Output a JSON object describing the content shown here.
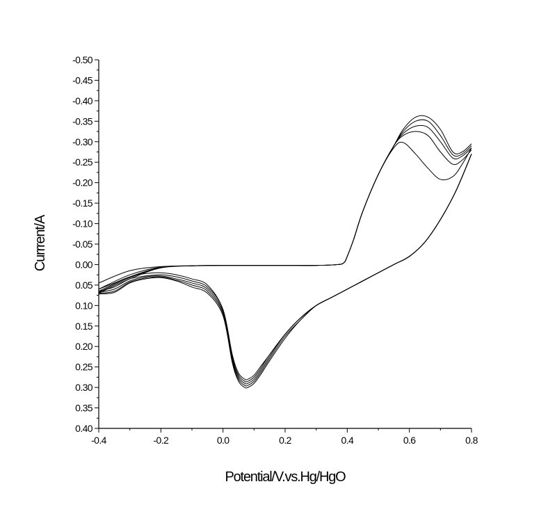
{
  "chart_data": {
    "type": "line",
    "title": "",
    "xlabel": "Potential/V.vs.Hg/HgO",
    "ylabel": "Currrent/A",
    "xlim": [
      -0.4,
      0.8
    ],
    "ylim": [
      0.4,
      -0.5
    ],
    "y_axis_inverted": true,
    "grid": false,
    "legend": "none",
    "x_ticks": [
      -0.4,
      -0.2,
      0.0,
      0.2,
      0.4,
      0.6,
      0.8
    ],
    "x_tick_labels": [
      "-0.4",
      "-0.2",
      "0.0",
      "0.2",
      "0.4",
      "0.6",
      "0.8"
    ],
    "y_ticks": [
      -0.5,
      -0.45,
      -0.4,
      -0.35,
      -0.3,
      -0.25,
      -0.2,
      -0.15,
      -0.1,
      -0.05,
      0.0,
      0.05,
      0.1,
      0.15,
      0.2,
      0.25,
      0.3,
      0.35,
      0.4
    ],
    "y_tick_labels": [
      "-0.50",
      "-0.45",
      "-0.40",
      "-0.35",
      "-0.30",
      "-0.25",
      "-0.20",
      "-0.15",
      "-0.10",
      "-0.05",
      "0.00",
      "0.05",
      "0.10",
      "0.15",
      "0.20",
      "0.25",
      "0.30",
      "0.35",
      "0.40"
    ],
    "line_color": "#000000",
    "series": [
      {
        "anodic": {
          "x": [
            -0.4,
            -0.3,
            -0.2,
            -0.1,
            0.0,
            0.1,
            0.2,
            0.3,
            0.37,
            0.39,
            0.4,
            0.42,
            0.45,
            0.5,
            0.55,
            0.58,
            0.62,
            0.66,
            0.7,
            0.74,
            0.77,
            0.8
          ],
          "y": [
            0.045,
            0.015,
            0.005,
            0.003,
            0.002,
            0.002,
            0.002,
            0.002,
            0.0,
            -0.005,
            -0.02,
            -0.06,
            -0.13,
            -0.22,
            -0.285,
            -0.298,
            -0.27,
            -0.235,
            -0.208,
            -0.215,
            -0.245,
            -0.285
          ]
        },
        "cathodic": {
          "x": [
            0.8,
            0.75,
            0.7,
            0.65,
            0.6,
            0.55,
            0.5,
            0.45,
            0.4,
            0.35,
            0.3,
            0.25,
            0.2,
            0.15,
            0.12,
            0.1,
            0.08,
            0.07,
            0.05,
            0.03,
            0.0,
            -0.05,
            -0.1,
            -0.15,
            -0.2,
            -0.25,
            -0.3,
            -0.35,
            -0.4
          ],
          "y": [
            -0.27,
            -0.18,
            -0.11,
            -0.055,
            -0.02,
            0.0,
            0.02,
            0.04,
            0.06,
            0.08,
            0.1,
            0.13,
            0.17,
            0.22,
            0.25,
            0.27,
            0.28,
            0.28,
            0.265,
            0.22,
            0.11,
            0.05,
            0.035,
            0.025,
            0.02,
            0.022,
            0.03,
            0.045,
            0.06
          ]
        }
      },
      {
        "anodic": {
          "x": [
            -0.4,
            -0.3,
            -0.2,
            -0.1,
            0.0,
            0.1,
            0.2,
            0.3,
            0.37,
            0.39,
            0.4,
            0.42,
            0.45,
            0.5,
            0.55,
            0.58,
            0.62,
            0.66,
            0.7,
            0.74,
            0.77,
            0.8
          ],
          "y": [
            0.06,
            0.025,
            0.006,
            0.003,
            0.002,
            0.002,
            0.002,
            0.002,
            0.0,
            -0.005,
            -0.02,
            -0.06,
            -0.13,
            -0.22,
            -0.29,
            -0.315,
            -0.325,
            -0.315,
            -0.275,
            -0.245,
            -0.255,
            -0.28
          ]
        },
        "cathodic": {
          "x": [
            0.8,
            0.75,
            0.7,
            0.65,
            0.6,
            0.55,
            0.5,
            0.45,
            0.4,
            0.35,
            0.3,
            0.25,
            0.2,
            0.15,
            0.12,
            0.1,
            0.08,
            0.07,
            0.05,
            0.03,
            0.0,
            -0.05,
            -0.1,
            -0.15,
            -0.2,
            -0.25,
            -0.3,
            -0.35,
            -0.4
          ],
          "y": [
            -0.27,
            -0.18,
            -0.11,
            -0.055,
            -0.02,
            0.0,
            0.02,
            0.04,
            0.06,
            0.08,
            0.1,
            0.13,
            0.17,
            0.22,
            0.255,
            0.275,
            0.285,
            0.285,
            0.27,
            0.225,
            0.11,
            0.055,
            0.04,
            0.03,
            0.025,
            0.028,
            0.035,
            0.055,
            0.065
          ]
        }
      },
      {
        "anodic": {
          "x": [
            -0.4,
            -0.3,
            -0.2,
            -0.1,
            0.0,
            0.1,
            0.2,
            0.3,
            0.37,
            0.39,
            0.4,
            0.42,
            0.45,
            0.5,
            0.55,
            0.58,
            0.62,
            0.66,
            0.7,
            0.74,
            0.77,
            0.8
          ],
          "y": [
            0.065,
            0.03,
            0.007,
            0.003,
            0.002,
            0.002,
            0.002,
            0.002,
            0.0,
            -0.005,
            -0.02,
            -0.06,
            -0.13,
            -0.22,
            -0.29,
            -0.32,
            -0.338,
            -0.335,
            -0.3,
            -0.26,
            -0.265,
            -0.285
          ]
        },
        "cathodic": {
          "x": [
            0.8,
            0.75,
            0.7,
            0.65,
            0.6,
            0.55,
            0.5,
            0.45,
            0.4,
            0.35,
            0.3,
            0.25,
            0.2,
            0.15,
            0.12,
            0.1,
            0.08,
            0.07,
            0.05,
            0.03,
            0.0,
            -0.05,
            -0.1,
            -0.15,
            -0.2,
            -0.25,
            -0.3,
            -0.35,
            -0.4
          ],
          "y": [
            -0.27,
            -0.18,
            -0.11,
            -0.055,
            -0.02,
            0.0,
            0.02,
            0.04,
            0.06,
            0.08,
            0.1,
            0.13,
            0.17,
            0.225,
            0.26,
            0.28,
            0.29,
            0.29,
            0.275,
            0.23,
            0.115,
            0.06,
            0.045,
            0.035,
            0.028,
            0.03,
            0.04,
            0.06,
            0.068
          ]
        }
      },
      {
        "anodic": {
          "x": [
            -0.4,
            -0.3,
            -0.2,
            -0.1,
            0.0,
            0.1,
            0.2,
            0.3,
            0.37,
            0.39,
            0.4,
            0.42,
            0.45,
            0.5,
            0.55,
            0.58,
            0.62,
            0.66,
            0.7,
            0.74,
            0.77,
            0.8
          ],
          "y": [
            0.068,
            0.032,
            0.008,
            0.003,
            0.002,
            0.002,
            0.002,
            0.002,
            0.0,
            -0.005,
            -0.02,
            -0.06,
            -0.13,
            -0.22,
            -0.29,
            -0.325,
            -0.35,
            -0.35,
            -0.315,
            -0.268,
            -0.27,
            -0.29
          ]
        },
        "cathodic": {
          "x": [
            0.8,
            0.75,
            0.7,
            0.65,
            0.6,
            0.55,
            0.5,
            0.45,
            0.4,
            0.35,
            0.3,
            0.25,
            0.2,
            0.15,
            0.12,
            0.1,
            0.08,
            0.07,
            0.05,
            0.03,
            0.0,
            -0.05,
            -0.1,
            -0.15,
            -0.2,
            -0.25,
            -0.3,
            -0.35,
            -0.4
          ],
          "y": [
            -0.27,
            -0.18,
            -0.11,
            -0.055,
            -0.02,
            0.0,
            0.02,
            0.04,
            0.06,
            0.08,
            0.1,
            0.135,
            0.175,
            0.23,
            0.265,
            0.285,
            0.295,
            0.295,
            0.28,
            0.235,
            0.12,
            0.065,
            0.05,
            0.038,
            0.03,
            0.033,
            0.043,
            0.065,
            0.07
          ]
        }
      },
      {
        "anodic": {
          "x": [
            -0.4,
            -0.3,
            -0.2,
            -0.1,
            0.0,
            0.1,
            0.2,
            0.3,
            0.37,
            0.39,
            0.4,
            0.42,
            0.45,
            0.5,
            0.55,
            0.58,
            0.62,
            0.66,
            0.7,
            0.74,
            0.77,
            0.8
          ],
          "y": [
            0.07,
            0.035,
            0.008,
            0.003,
            0.002,
            0.002,
            0.002,
            0.002,
            0.0,
            -0.005,
            -0.02,
            -0.06,
            -0.13,
            -0.22,
            -0.29,
            -0.33,
            -0.36,
            -0.36,
            -0.33,
            -0.275,
            -0.275,
            -0.295
          ]
        },
        "cathodic": {
          "x": [
            0.8,
            0.75,
            0.7,
            0.65,
            0.6,
            0.55,
            0.5,
            0.45,
            0.4,
            0.35,
            0.3,
            0.25,
            0.2,
            0.15,
            0.12,
            0.1,
            0.08,
            0.07,
            0.05,
            0.03,
            0.0,
            -0.05,
            -0.1,
            -0.15,
            -0.2,
            -0.25,
            -0.3,
            -0.35,
            -0.4
          ],
          "y": [
            -0.27,
            -0.18,
            -0.11,
            -0.055,
            -0.02,
            0.0,
            0.02,
            0.04,
            0.06,
            0.08,
            0.1,
            0.135,
            0.18,
            0.235,
            0.27,
            0.29,
            0.3,
            0.3,
            0.285,
            0.24,
            0.125,
            0.07,
            0.055,
            0.04,
            0.032,
            0.035,
            0.045,
            0.068,
            0.072
          ]
        }
      }
    ]
  }
}
